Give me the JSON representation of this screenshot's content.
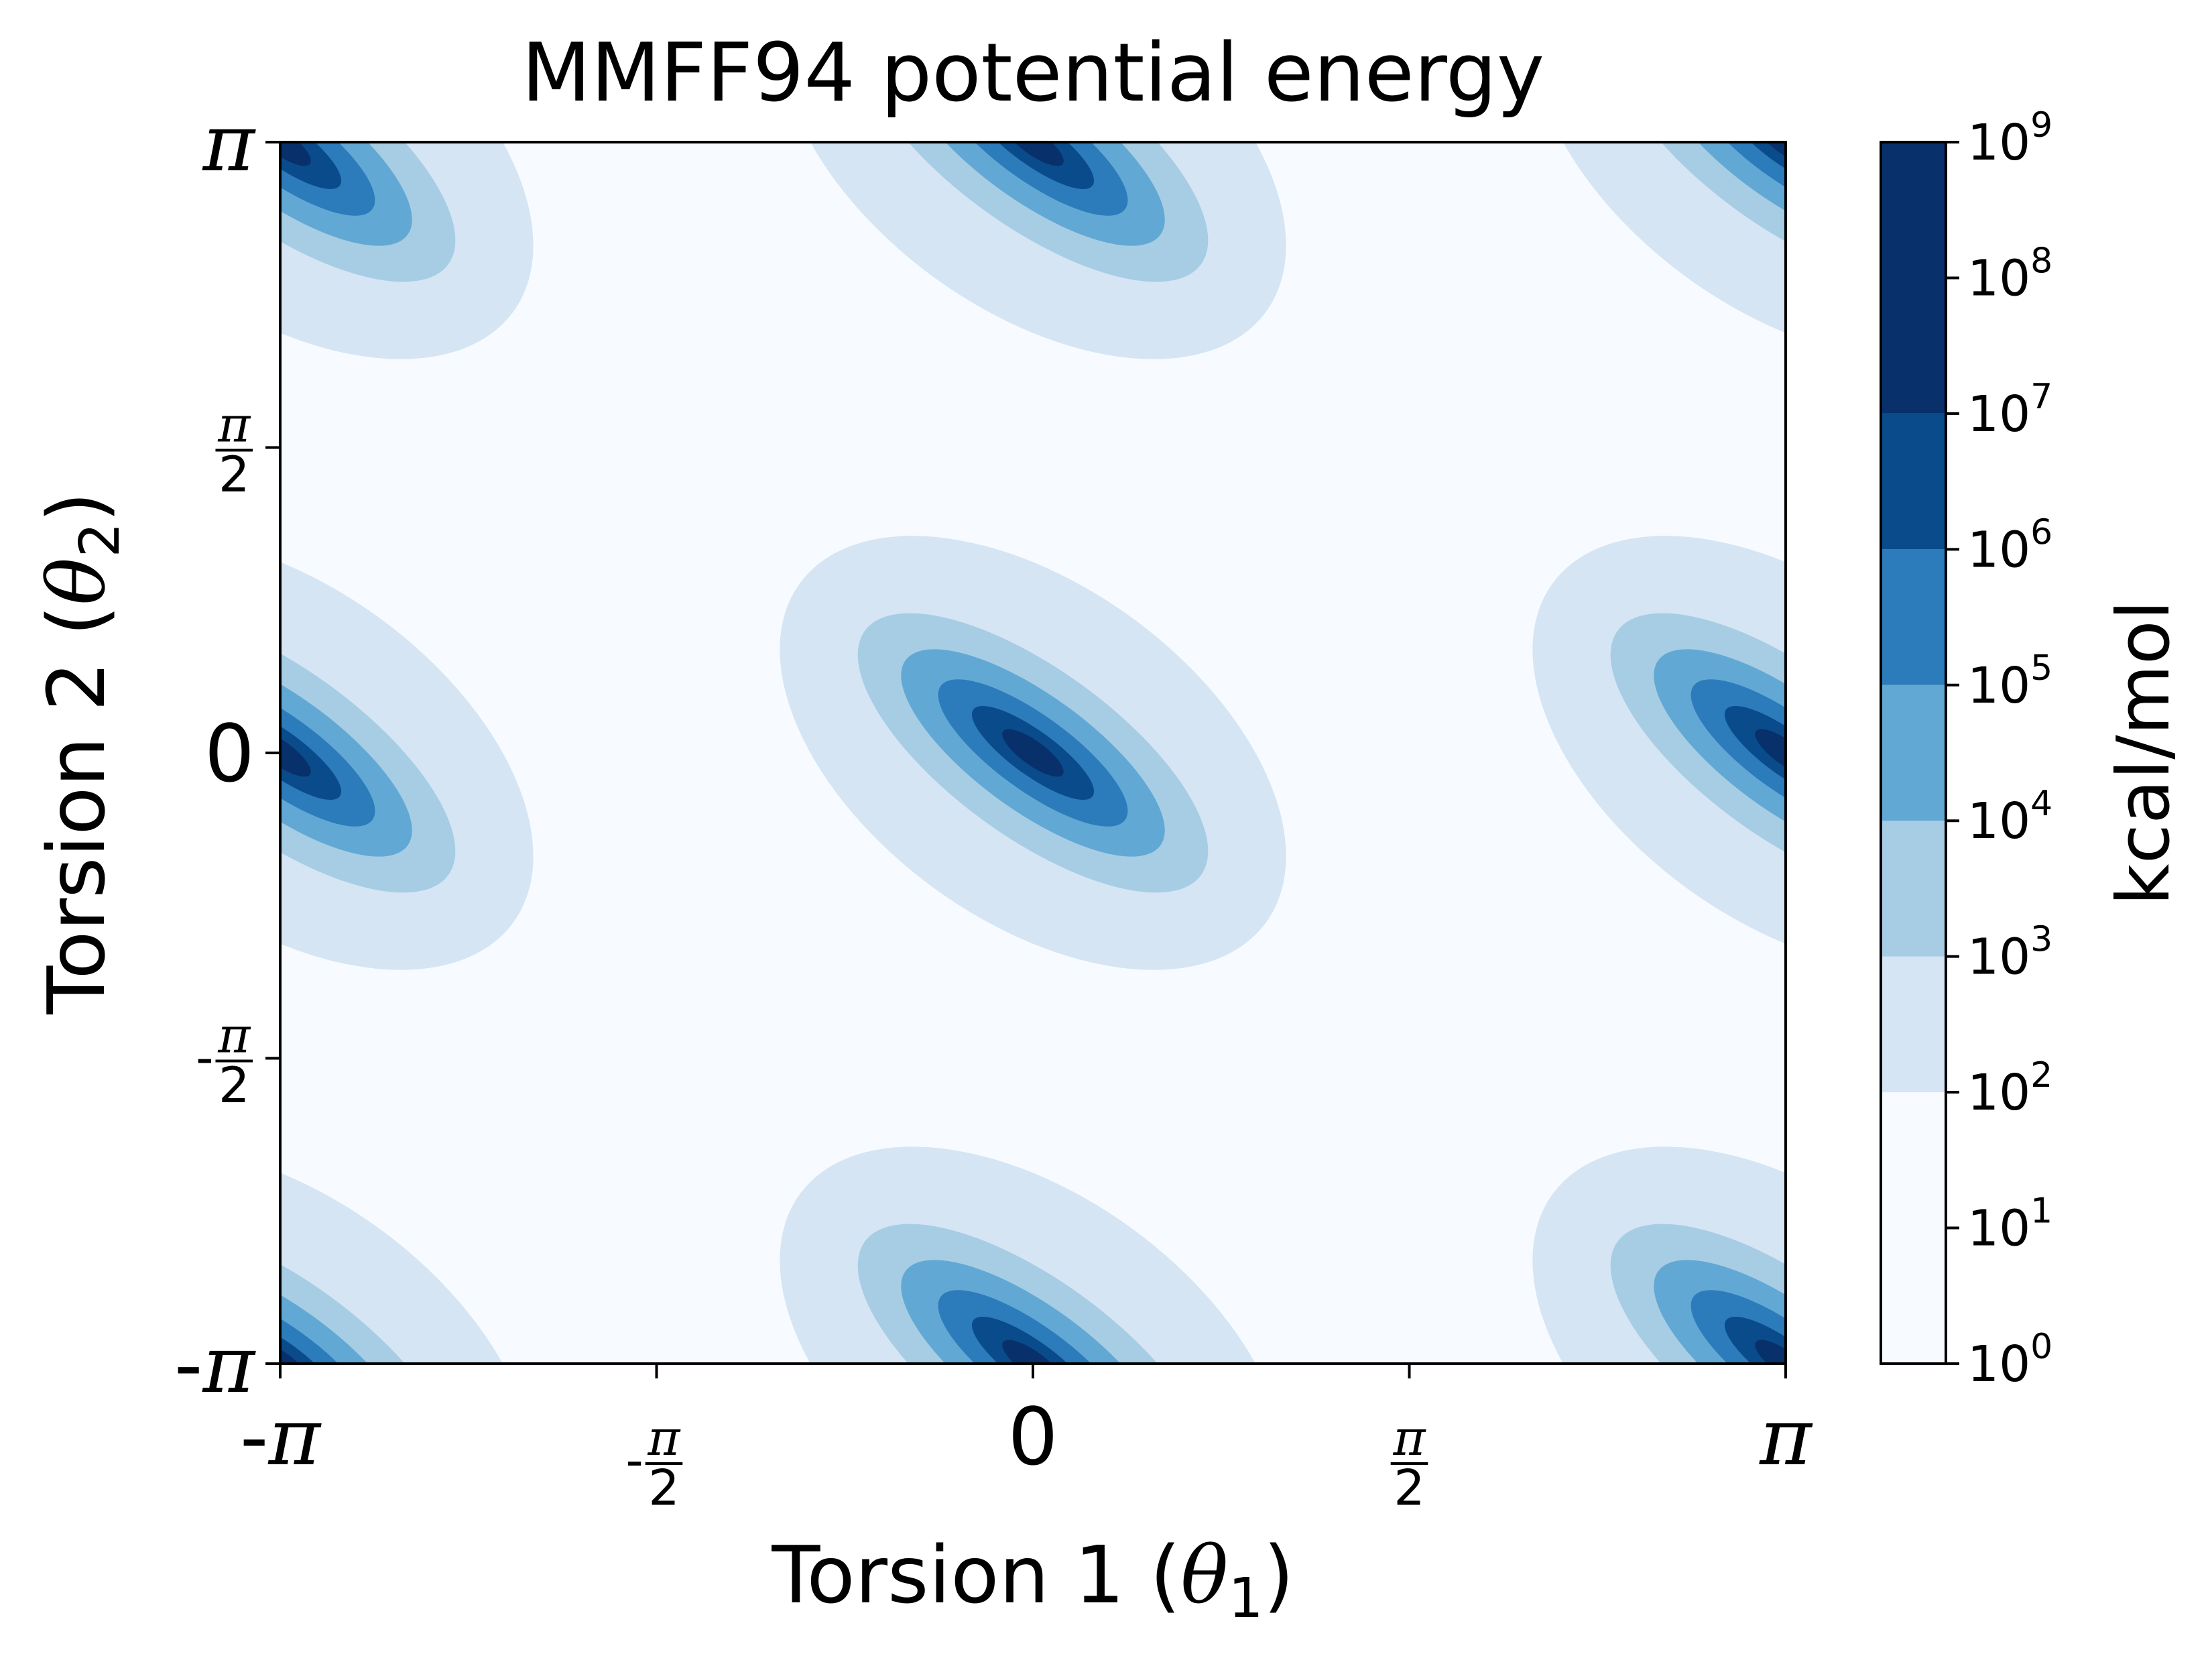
{
  "chart_data": {
    "type": "contourf",
    "title": "MMFF94 potential energy",
    "xlabel": {
      "text": "Torsion 1 (",
      "symbol": "θ",
      "subscript": "1",
      "close": ")"
    },
    "ylabel": {
      "text": "Torsion 2 (",
      "symbol": "θ",
      "subscript": "2",
      "close": ")"
    },
    "xlim": [
      -3.14159,
      3.14159
    ],
    "ylim": [
      -3.14159,
      3.14159
    ],
    "x_ticks": [
      {
        "value": -3.14159,
        "sign": "-",
        "label": "π",
        "kind": "pi"
      },
      {
        "value": -1.5708,
        "sign": "-",
        "label": "π",
        "denominator": "2",
        "kind": "frac"
      },
      {
        "value": 0,
        "sign": "",
        "label": "0",
        "kind": "zero"
      },
      {
        "value": 1.5708,
        "sign": "",
        "label": "π",
        "denominator": "2",
        "kind": "frac"
      },
      {
        "value": 3.14159,
        "sign": "",
        "label": "π",
        "kind": "pi"
      }
    ],
    "y_ticks": [
      {
        "value": -3.14159,
        "sign": "-",
        "label": "π",
        "kind": "pi"
      },
      {
        "value": -1.5708,
        "sign": "-",
        "label": "π",
        "denominator": "2",
        "kind": "frac"
      },
      {
        "value": 0,
        "sign": "",
        "label": "0",
        "kind": "zero"
      },
      {
        "value": 1.5708,
        "sign": "",
        "label": "π",
        "denominator": "2",
        "kind": "frac"
      },
      {
        "value": 3.14159,
        "sign": "",
        "label": "π",
        "kind": "pi"
      }
    ],
    "colorbar": {
      "label": "kcal/mol",
      "scale": "log",
      "base": "10",
      "exponents": [
        "0",
        "1",
        "2",
        "3",
        "4",
        "5",
        "6",
        "7",
        "8",
        "9"
      ],
      "level_colors": [
        "#f7fbff",
        "#d5e5f4",
        "#a7cde4",
        "#62a8d4",
        "#2c7bbb",
        "#0a4b8b",
        "#08306b"
      ]
    },
    "minima_wells": [
      {
        "x": 0,
        "y": 0
      },
      {
        "x": -3.14159,
        "y": 0
      },
      {
        "x": 3.14159,
        "y": 0
      },
      {
        "x": 0,
        "y": 3.14159
      },
      {
        "x": 0,
        "y": -3.14159
      },
      {
        "x": -3.14159,
        "y": 3.14159
      },
      {
        "x": 3.14159,
        "y": 3.14159
      },
      {
        "x": -3.14159,
        "y": -3.14159
      },
      {
        "x": 3.14159,
        "y": -3.14159
      }
    ],
    "grid": false,
    "legend": "none"
  }
}
